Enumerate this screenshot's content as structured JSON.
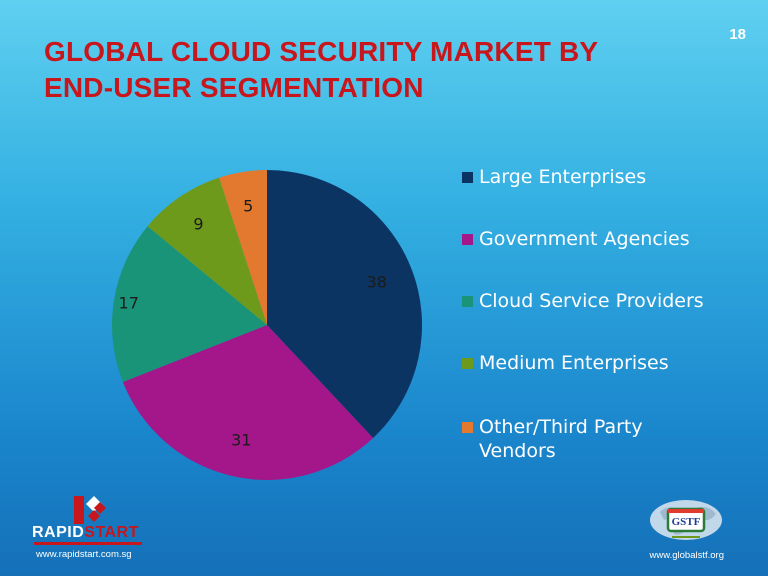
{
  "slide": {
    "number": "18"
  },
  "title": {
    "line1": "GLOBAL CLOUD SECURITY MARKET BY",
    "line2": "END-USER SEGMENTATION"
  },
  "chart_data": {
    "type": "pie",
    "title": "GLOBAL CLOUD SECURITY MARKET BY END-USER SEGMENTATION",
    "categories": [
      "Large Enterprises",
      "Government Agencies",
      "Cloud Service Providers",
      "Medium Enterprises",
      "Other/Third Party Vendors"
    ],
    "values": [
      38,
      31,
      17,
      9,
      5
    ],
    "value_labels": [
      "38",
      "31",
      "17",
      "9",
      "5"
    ],
    "colors": [
      "#0b3463",
      "#a3178a",
      "#199479",
      "#6e9a1c",
      "#e2792e"
    ],
    "start_angle": "12 o'clock, clockwise",
    "legend_position": "right"
  },
  "footer": {
    "left_logo_name": "RAPID",
    "left_logo_accent": "START",
    "left_url": "www.rapidstart.com.sg",
    "right_logo_text": "GSTF",
    "right_url": "www.globalstf.org"
  }
}
